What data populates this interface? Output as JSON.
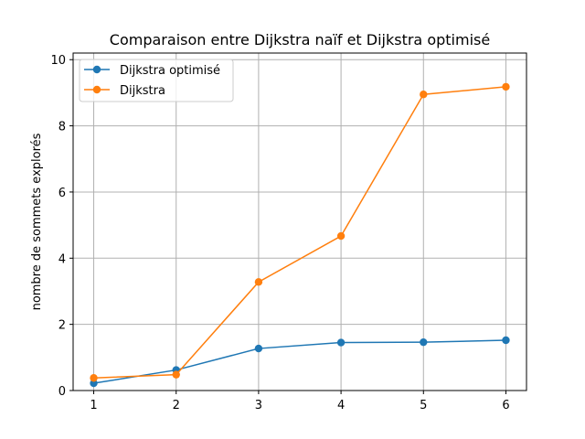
{
  "chart_data": {
    "type": "line",
    "title": "Comparaison entre Dijkstra naïf et Dijkstra optimisé",
    "xlabel": "",
    "ylabel": "nombre de sommets explorés",
    "x": [
      1,
      2,
      3,
      4,
      5,
      6
    ],
    "xticks": [
      "1",
      "2",
      "3",
      "4",
      "5",
      "6"
    ],
    "yticks": [
      "0",
      "2",
      "4",
      "6",
      "8",
      "10"
    ],
    "xlim": [
      0.75,
      6.25
    ],
    "ylim": [
      0,
      10.2
    ],
    "grid": true,
    "legend_position": "upper left",
    "series": [
      {
        "name": "Dijkstra optimisé",
        "color": "#1f77b4",
        "marker": "circle",
        "values": [
          0.22,
          0.62,
          1.27,
          1.45,
          1.46,
          1.52
        ]
      },
      {
        "name": "Dijkstra",
        "color": "#ff7f0e",
        "marker": "circle",
        "values": [
          0.38,
          0.48,
          3.28,
          4.67,
          8.95,
          9.18
        ]
      }
    ]
  }
}
